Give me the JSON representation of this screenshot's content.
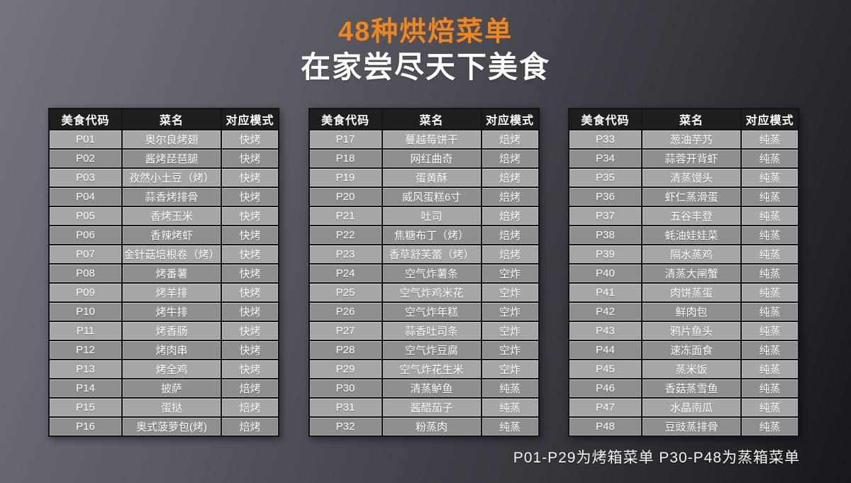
{
  "title": "48种烘焙菜单",
  "subtitle": "在家尝尽天下美食",
  "footer_note": "P01-P29为烤箱菜单  P30-P48为蒸箱菜单",
  "columns": [
    "美食代码",
    "菜名",
    "对应模式"
  ],
  "colors": {
    "accent_orange": "#F0861C",
    "header_bg": "#1E1E1E",
    "row_light": "#A6A6A6",
    "row_dark": "#8F8F8F",
    "text": "#FFFFFF",
    "background_top_left": "#6E6E78",
    "background_bottom_right": "#17171B"
  },
  "tables": [
    {
      "rows": [
        [
          "P01",
          "奥尔良烤翅",
          "快烤"
        ],
        [
          "P02",
          "酱烤琵琶腿",
          "快烤"
        ],
        [
          "P03",
          "孜然小土豆（烤）",
          "快烤"
        ],
        [
          "P04",
          "蒜香烤排骨",
          "快烤"
        ],
        [
          "P05",
          "香烤玉米",
          "快烤"
        ],
        [
          "P06",
          "香辣烤虾",
          "快烤"
        ],
        [
          "P07",
          "金针菇培根卷（烤）",
          "快烤"
        ],
        [
          "P08",
          "烤番薯",
          "快烤"
        ],
        [
          "P09",
          "烤羊排",
          "快烤"
        ],
        [
          "P10",
          "烤牛排",
          "快烤"
        ],
        [
          "P11",
          "烤香肠",
          "快烤"
        ],
        [
          "P12",
          "烤肉串",
          "快烤"
        ],
        [
          "P13",
          "烤全鸡",
          "快烤"
        ],
        [
          "P14",
          "披萨",
          "焙烤"
        ],
        [
          "P15",
          "蛋挞",
          "焙烤"
        ],
        [
          "P16",
          "奥式菠萝包(烤)",
          "焙烤"
        ]
      ]
    },
    {
      "rows": [
        [
          "P17",
          "蔓越莓饼干",
          "焙烤"
        ],
        [
          "P18",
          "网红曲奇",
          "焙烤"
        ],
        [
          "P19",
          "蛋黄酥",
          "焙烤"
        ],
        [
          "P20",
          "威风蛋糕6寸",
          "焙烤"
        ],
        [
          "P21",
          "吐司",
          "焙烤"
        ],
        [
          "P22",
          "焦糖布丁（烤）",
          "焙烤"
        ],
        [
          "P23",
          "香草舒芙蕾（烤）",
          "焙烤"
        ],
        [
          "P24",
          "空气炸薯条",
          "空炸"
        ],
        [
          "P25",
          "空气炸鸡米花",
          "空炸"
        ],
        [
          "P26",
          "空气炸年糕",
          "空炸"
        ],
        [
          "P27",
          "蒜香吐司条",
          "空炸"
        ],
        [
          "P28",
          "空气炸豆腐",
          "空炸"
        ],
        [
          "P29",
          "空气炸花生米",
          "空炸"
        ],
        [
          "P30",
          "清蒸鲈鱼",
          "纯蒸"
        ],
        [
          "P31",
          "酱醋茄子",
          "纯蒸"
        ],
        [
          "P32",
          "粉蒸肉",
          "纯蒸"
        ]
      ]
    },
    {
      "rows": [
        [
          "P33",
          "葱油芋艿",
          "纯蒸"
        ],
        [
          "P34",
          "蒜蓉开背虾",
          "纯蒸"
        ],
        [
          "P35",
          "清蒸馒头",
          "纯蒸"
        ],
        [
          "P36",
          "虾仁蒸滑蛋",
          "纯蒸"
        ],
        [
          "P37",
          "五谷丰登",
          "纯蒸"
        ],
        [
          "P38",
          "蚝油娃娃菜",
          "纯蒸"
        ],
        [
          "P39",
          "隔水蒸鸡",
          "纯蒸"
        ],
        [
          "P40",
          "清蒸大闸蟹",
          "纯蒸"
        ],
        [
          "P41",
          "肉饼蒸蛋",
          "纯蒸"
        ],
        [
          "P42",
          "鲜肉包",
          "纯蒸"
        ],
        [
          "P43",
          "鸦片鱼头",
          "纯蒸"
        ],
        [
          "P44",
          "速冻面食",
          "纯蒸"
        ],
        [
          "P45",
          "蒸米饭",
          "纯蒸"
        ],
        [
          "P46",
          "香菇蒸雪鱼",
          "纯蒸"
        ],
        [
          "P47",
          "水晶南瓜",
          "纯蒸"
        ],
        [
          "P48",
          "豆豉蒸排骨",
          "纯蒸"
        ]
      ]
    }
  ]
}
